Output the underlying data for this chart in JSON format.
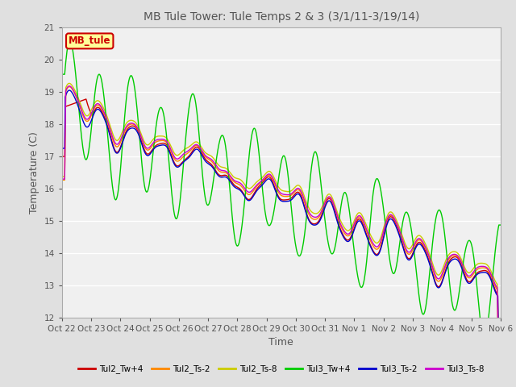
{
  "title": "MB Tule Tower: Tule Temps 2 & 3 (3/1/11-3/19/14)",
  "xlabel": "Time",
  "ylabel": "Temperature (C)",
  "ylim": [
    12.0,
    21.0
  ],
  "yticks": [
    12.0,
    13.0,
    14.0,
    15.0,
    16.0,
    17.0,
    18.0,
    19.0,
    20.0,
    21.0
  ],
  "xtick_labels": [
    "Oct 22",
    "Oct 23",
    "Oct 24",
    "Oct 25",
    "Oct 26",
    "Oct 27",
    "Oct 28",
    "Oct 29",
    "Oct 30",
    "Oct 31",
    "Nov 1",
    "Nov 2",
    "Nov 3",
    "Nov 4",
    "Nov 5",
    "Nov 6"
  ],
  "legend_label": "MB_tule",
  "legend_box_color": "#cc0000",
  "legend_box_bg": "#ffff99",
  "series": [
    {
      "name": "Tul2_Tw+4",
      "color": "#cc0000"
    },
    {
      "name": "Tul2_Ts-2",
      "color": "#ff8800"
    },
    {
      "name": "Tul2_Ts-8",
      "color": "#cccc00"
    },
    {
      "name": "Tul3_Tw+4",
      "color": "#00cc00"
    },
    {
      "name": "Tul3_Ts-2",
      "color": "#0000cc"
    },
    {
      "name": "Tul3_Ts-8",
      "color": "#cc00cc"
    }
  ],
  "bg_color": "#e0e0e0",
  "plot_bg_color": "#f0f0f0",
  "grid_color": "#ffffff",
  "title_color": "#555555",
  "label_color": "#555555",
  "tick_color": "#555555"
}
